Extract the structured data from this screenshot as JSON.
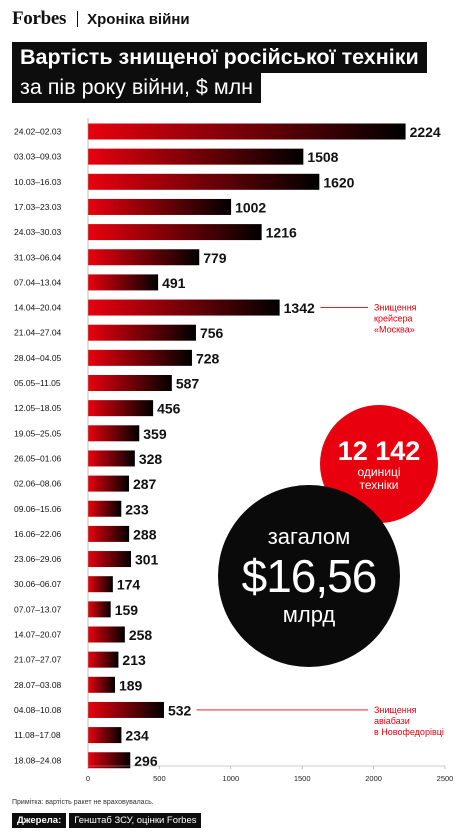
{
  "header": {
    "brand": "Forbes",
    "section": "Хроніка війни",
    "title_line1": "Вартість знищеної російської техніки",
    "title_line2": "за пів року війни, $ млн"
  },
  "colors": {
    "accent_red": "#e8000e",
    "dark": "#0a0a0a",
    "bar_gradient": [
      "#e8000e",
      "#000000"
    ]
  },
  "chart_data": {
    "type": "bar",
    "orientation": "horizontal",
    "categories": [
      "24.02–02.03",
      "03.03–09.03",
      "10.03–16.03",
      "17.03–23.03",
      "24.03–30.03",
      "31.03–06.04",
      "07.04–13.04",
      "14.04–20.04",
      "21.04–27.04",
      "28.04–04.05",
      "05.05–11.05",
      "12.05–18.05",
      "19.05–25.05",
      "26.05–01.06",
      "02.06–08.06",
      "09.06–15.06",
      "16.06–22.06",
      "23.06–29.06",
      "30.06–06.07",
      "07.07–13.07",
      "14.07–20.07",
      "21.07–27.07",
      "28.07–03.08",
      "04.08–10.08",
      "11.08–17.08",
      "18.08–24.08"
    ],
    "values": [
      2224,
      1508,
      1620,
      1002,
      1216,
      779,
      491,
      1342,
      756,
      728,
      587,
      456,
      359,
      328,
      287,
      233,
      288,
      301,
      174,
      159,
      258,
      213,
      189,
      532,
      234,
      296
    ],
    "xlim": [
      0,
      2500
    ],
    "xticks": [
      "0",
      "500",
      "1000",
      "1500",
      "2000",
      "2500"
    ],
    "grid": false,
    "annotations": [
      {
        "category": "14.04–20.04",
        "lines": [
          "Знищення",
          "крейсера",
          "«Москва»"
        ]
      },
      {
        "category": "04.08–10.08",
        "lines": [
          "Знищення",
          "авіабази",
          "в Новофедорівці"
        ]
      }
    ]
  },
  "badges": {
    "units_count": "12 142",
    "units_label_1": "одиниці",
    "units_label_2": "техніки",
    "total_label": "загалом",
    "total_value": "$16,56",
    "total_unit": "млрд"
  },
  "footer": {
    "note": "Примітка: вартість ракет не враховувалась.",
    "sources_label": "Джерела:",
    "sources_text": "Генштаб ЗСУ, оцінки Forbes"
  }
}
